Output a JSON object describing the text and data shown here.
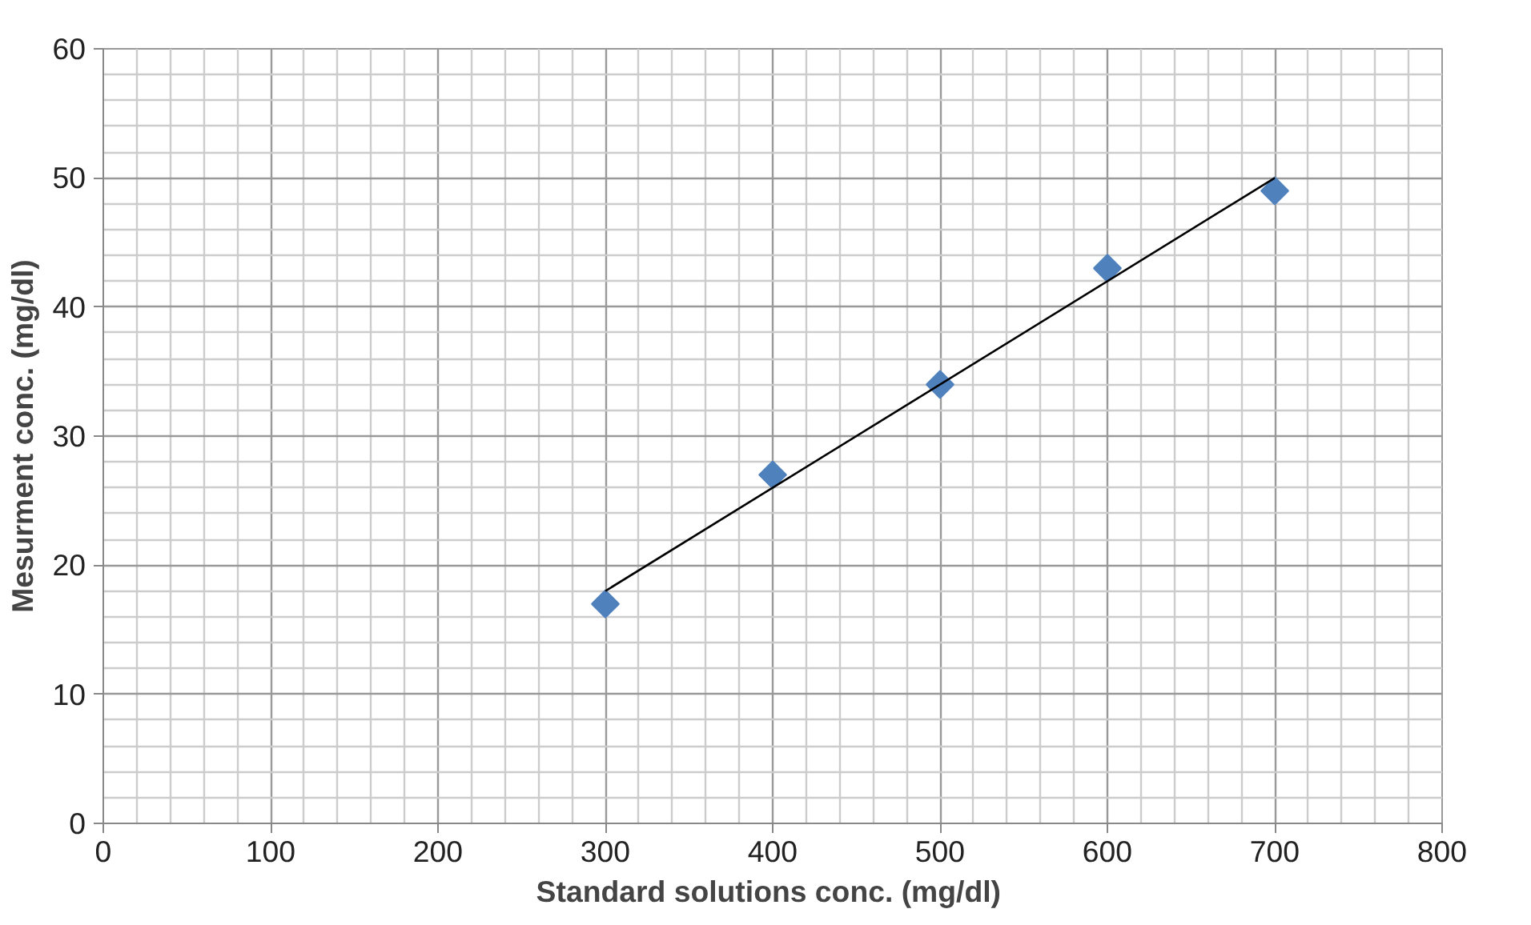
{
  "chart_data": {
    "type": "scatter",
    "xlabel": "Standard solutions  conc. (mg/dl)",
    "ylabel": "Mesurment conc. (mg/dl)",
    "xlim": [
      0,
      800
    ],
    "ylim": [
      0,
      60
    ],
    "xticks": [
      0,
      100,
      200,
      300,
      400,
      500,
      600,
      700,
      800
    ],
    "yticks": [
      0,
      10,
      20,
      30,
      40,
      50,
      60
    ],
    "grid": true,
    "x": [
      300,
      400,
      500,
      600,
      700
    ],
    "series": [
      {
        "color": "#4f81bd",
        "marker": "diamond",
        "values": [
          17,
          27,
          34,
          43,
          49
        ]
      },
      {
        "type": "line",
        "color": "#000000",
        "marker": "none",
        "line_style": "solid",
        "x": [
          300,
          700
        ],
        "values": [
          18,
          50
        ]
      }
    ]
  }
}
